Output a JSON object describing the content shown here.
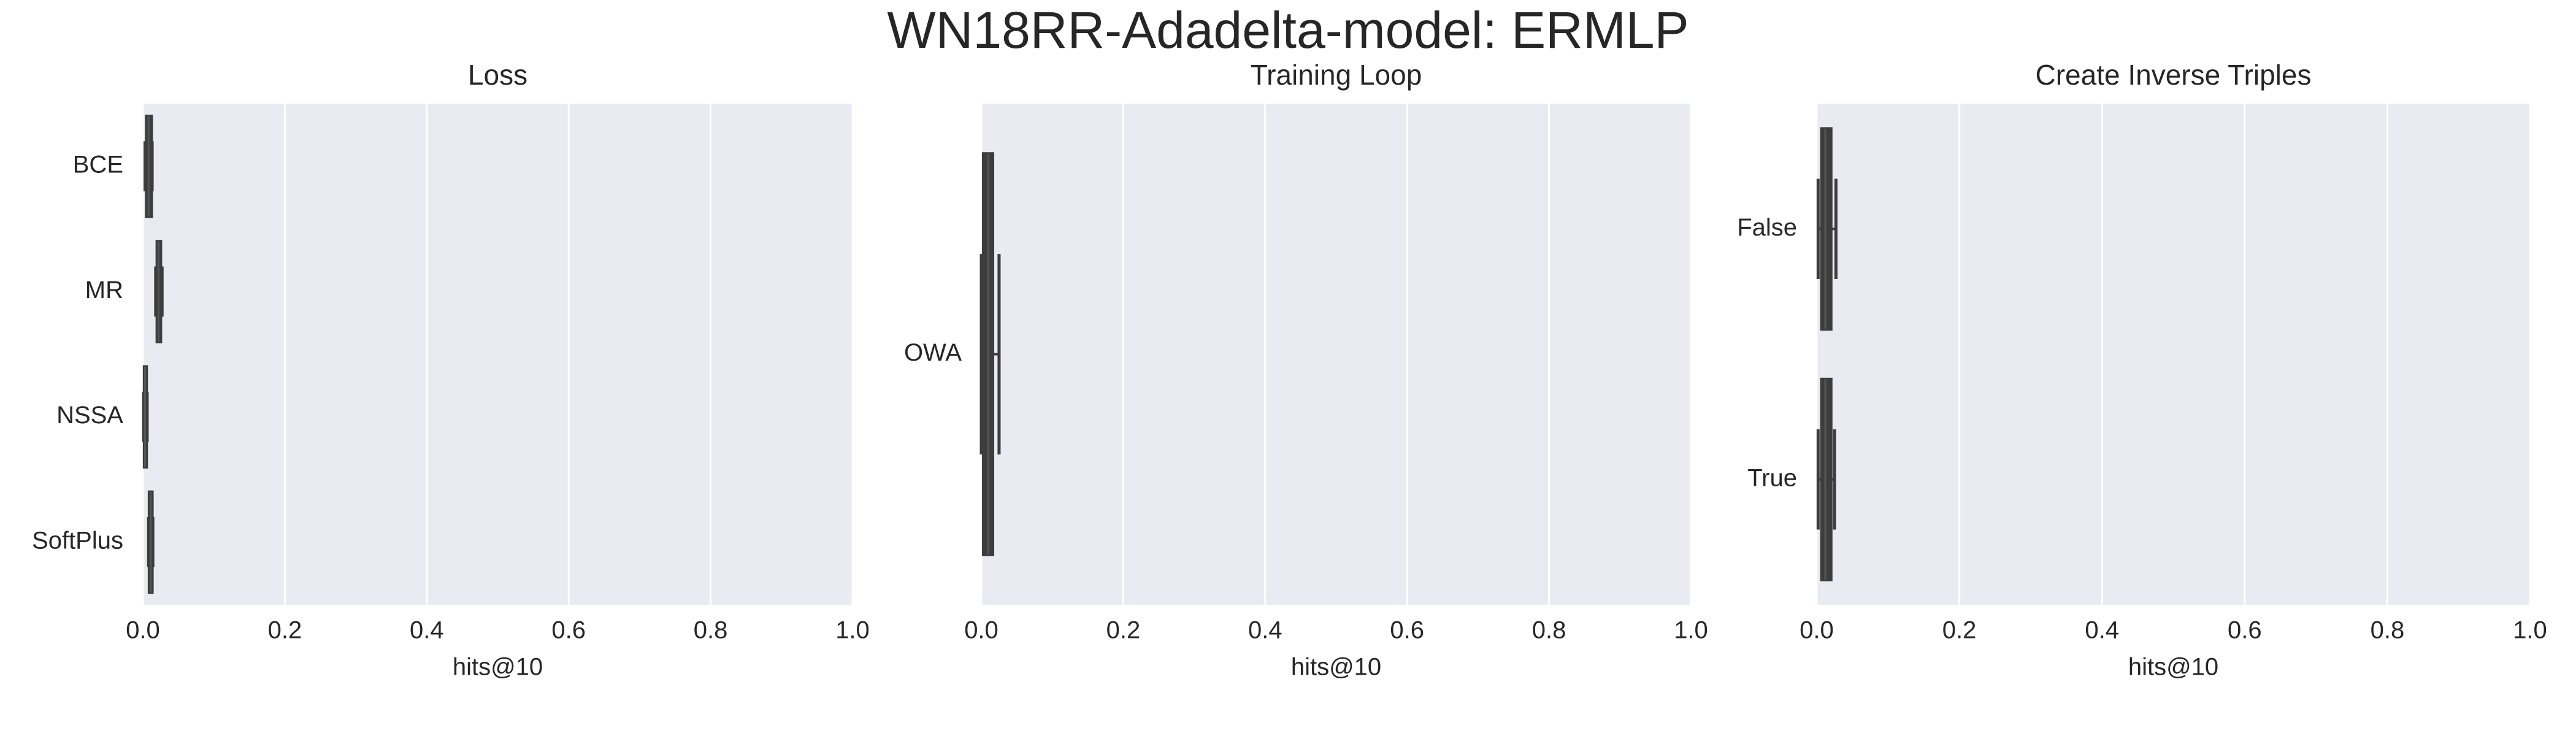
{
  "title": "WN18RR-Adadelta-model: ERMLP",
  "chart_data": [
    {
      "type": "box",
      "title": "Loss",
      "x_label": "hits@10",
      "categories": [
        "BCE",
        "MR",
        "NSSA",
        "SoftPlus"
      ],
      "boxes": [
        {
          "whislo": 0.003,
          "q1": 0.005,
          "med": 0.008,
          "q3": 0.012,
          "whishi": 0.013
        },
        {
          "whislo": 0.018,
          "q1": 0.02,
          "med": 0.022,
          "q3": 0.025,
          "whishi": 0.027
        },
        {
          "whislo": 0.001,
          "q1": 0.002,
          "med": 0.003,
          "q3": 0.005,
          "whishi": 0.006
        },
        {
          "whislo": 0.008,
          "q1": 0.009,
          "med": 0.011,
          "q3": 0.013,
          "whishi": 0.014
        }
      ],
      "color": "#3d3d3d",
      "xlim": [
        0,
        1
      ],
      "xticks": [
        {
          "value": 0,
          "label": "0.0"
        },
        0.2,
        0.4,
        0.6,
        0.8,
        {
          "value": 1,
          "label": "1.0"
        }
      ],
      "grid": true
    },
    {
      "type": "box",
      "title": "Training Loop",
      "x_label": "hits@10",
      "categories": [
        "OWA"
      ],
      "boxes": [
        {
          "whislo": 0,
          "q1": 0.003,
          "med": 0.01,
          "q3": 0.016,
          "whishi": 0.025
        }
      ],
      "color": "#3d3d3d",
      "xlim": [
        0,
        1
      ],
      "xticks": [
        {
          "value": 0,
          "label": "0.0"
        },
        0.2,
        0.4,
        0.6,
        0.8,
        {
          "value": 1,
          "label": "1.0"
        }
      ],
      "grid": true
    },
    {
      "type": "box",
      "title": "Create Inverse Triples",
      "x_label": "hits@10",
      "categories": [
        "False",
        "True"
      ],
      "boxes": [
        {
          "whislo": 0.002,
          "q1": 0.007,
          "med": 0.012,
          "q3": 0.02,
          "whishi": 0.027
        },
        {
          "whislo": 0.002,
          "q1": 0.007,
          "med": 0.012,
          "q3": 0.02,
          "whishi": 0.025
        }
      ],
      "color": "#3d3d3d",
      "xlim": [
        0,
        1
      ],
      "xticks": [
        {
          "value": 0,
          "label": "0.0"
        },
        0.2,
        0.4,
        0.6,
        0.8,
        {
          "value": 1,
          "label": "1.0"
        }
      ],
      "grid": true
    }
  ]
}
